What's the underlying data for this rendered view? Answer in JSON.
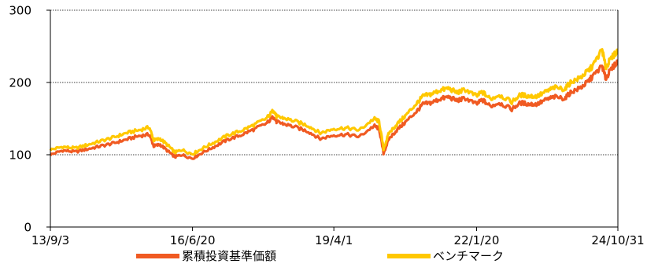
{
  "chart_data": {
    "type": "line",
    "title": "",
    "xlabel": "",
    "ylabel": "",
    "ylim": [
      0,
      300
    ],
    "yticks": [
      0,
      100,
      200,
      300
    ],
    "x_tick_labels": [
      "13/9/3",
      "16/6/20",
      "19/4/1",
      "22/1/20",
      "24/10/31"
    ],
    "x_tick_dates": [
      "2013-09-03",
      "2016-06-20",
      "2019-04-01",
      "2022-01-20",
      "2024-10-31"
    ],
    "grid": "horizontal dotted",
    "legend_position": "bottom",
    "x": [
      "2013-09-03",
      "2013-12-01",
      "2014-03-01",
      "2014-06-01",
      "2014-09-01",
      "2014-12-01",
      "2015-03-01",
      "2015-06-01",
      "2015-08-15",
      "2015-09-15",
      "2015-11-01",
      "2016-01-01",
      "2016-02-15",
      "2016-04-01",
      "2016-06-20",
      "2016-09-01",
      "2016-12-01",
      "2017-03-01",
      "2017-06-01",
      "2017-09-01",
      "2017-12-01",
      "2018-01-25",
      "2018-02-15",
      "2018-04-01",
      "2018-07-01",
      "2018-10-01",
      "2018-12-24",
      "2019-04-01",
      "2019-07-01",
      "2019-10-01",
      "2020-01-15",
      "2020-02-20",
      "2020-03-23",
      "2020-05-01",
      "2020-07-01",
      "2020-09-01",
      "2020-11-15",
      "2021-01-01",
      "2021-03-01",
      "2021-05-01",
      "2021-07-01",
      "2021-09-01",
      "2021-11-01",
      "2022-01-20",
      "2022-03-01",
      "2022-05-01",
      "2022-07-01",
      "2022-09-30",
      "2022-12-01",
      "2023-02-01",
      "2023-04-01",
      "2023-06-01",
      "2023-08-01",
      "2023-10-15",
      "2023-12-01",
      "2024-02-01",
      "2024-03-25",
      "2024-05-01",
      "2024-07-10",
      "2024-08-05",
      "2024-09-01",
      "2024-10-31"
    ],
    "series": [
      {
        "name": "累積投資基準価額",
        "color": "#f05a22",
        "values": [
          100,
          106,
          104,
          108,
          112,
          116,
          121,
          126,
          128,
          112,
          114,
          104,
          97,
          100,
          95,
          103,
          112,
          121,
          127,
          135,
          143,
          153,
          145,
          143,
          138,
          132,
          122,
          127,
          128,
          125,
          140,
          136,
          102,
          122,
          135,
          146,
          160,
          170,
          172,
          177,
          180,
          175,
          178,
          170,
          176,
          167,
          172,
          163,
          172,
          170,
          170,
          176,
          180,
          178,
          187,
          192,
          200,
          208,
          223,
          205,
          215,
          230
        ]
      },
      {
        "name": "ベンチマーク",
        "color": "#ffc800",
        "values": [
          107,
          111,
          109,
          114,
          119,
          124,
          130,
          134,
          138,
          120,
          122,
          112,
          103,
          107,
          101,
          109,
          118,
          127,
          133,
          141,
          150,
          162,
          152,
          151,
          146,
          140,
          130,
          136,
          137,
          134,
          150,
          146,
          108,
          130,
          143,
          155,
          171,
          181,
          184,
          189,
          192,
          186,
          190,
          181,
          187,
          177,
          183,
          173,
          183,
          181,
          181,
          187,
          193,
          191,
          201,
          206,
          215,
          222,
          246,
          220,
          230,
          245
        ]
      }
    ]
  },
  "legend": [
    {
      "label": "累積投資基準価額",
      "color": "#f05a22"
    },
    {
      "label": "ベンチマーク",
      "color": "#ffc800"
    }
  ]
}
